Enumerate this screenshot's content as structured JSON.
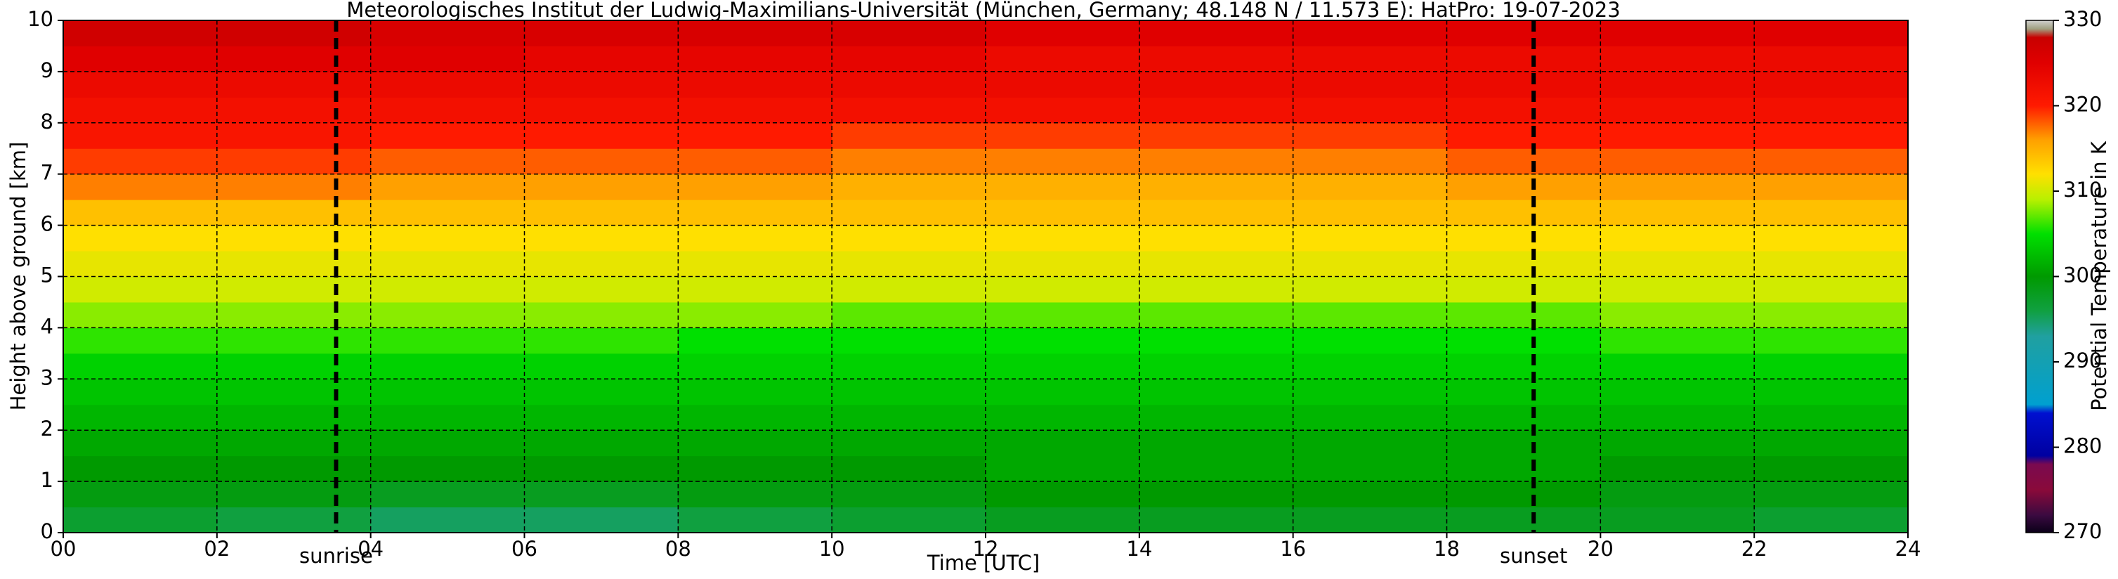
{
  "chart_data": {
    "type": "heatmap",
    "title": "Meteorologisches Institut der Ludwig-Maximilians-Universität (München, Germany; 48.148 N / 11.573 E):    HatPro: 19-07-2023",
    "xlabel": "Time [UTC]",
    "ylabel": "Height above ground [km]",
    "colorbar_label": "Potential Temperature in K",
    "x": [
      0,
      2,
      4,
      6,
      8,
      10,
      12,
      14,
      16,
      18,
      20,
      22,
      24
    ],
    "y": [
      0,
      0.5,
      1,
      1.5,
      2,
      2.5,
      3,
      3.5,
      4,
      4.5,
      5,
      5.5,
      6,
      6.5,
      7,
      7.5,
      8,
      8.5,
      9,
      9.5,
      10
    ],
    "z": [
      [
        297,
        296,
        295,
        295,
        296,
        297,
        298,
        298,
        298,
        298,
        298,
        297
      ],
      [
        299,
        299,
        298,
        298,
        299,
        299,
        300,
        300,
        300,
        300,
        299,
        299
      ],
      [
        300,
        300,
        300,
        300,
        300,
        300,
        301,
        301,
        301,
        301,
        300,
        300
      ],
      [
        301,
        301,
        301,
        301,
        301,
        301,
        301,
        301,
        301,
        301,
        301,
        301
      ],
      [
        302,
        302,
        302,
        302,
        302,
        302,
        302,
        302,
        302,
        302,
        302,
        302
      ],
      [
        303,
        303,
        303,
        303,
        303,
        303,
        303,
        303,
        303,
        303,
        303,
        303
      ],
      [
        304,
        304,
        304,
        304,
        304,
        304,
        304,
        304,
        304,
        304,
        304,
        304
      ],
      [
        306,
        306,
        306,
        306,
        305,
        305,
        305,
        305,
        305,
        305,
        306,
        306
      ],
      [
        308,
        308,
        308,
        308,
        308,
        307,
        307,
        307,
        307,
        307,
        308,
        308
      ],
      [
        310,
        310,
        310,
        310,
        310,
        310,
        310,
        310,
        310,
        310,
        310,
        310
      ],
      [
        311,
        311,
        311,
        311,
        311,
        311,
        311,
        311,
        311,
        311,
        311,
        311
      ],
      [
        312,
        312,
        312,
        312,
        312,
        312,
        312,
        312,
        312,
        312,
        312,
        312
      ],
      [
        314,
        314,
        314,
        314,
        314,
        314,
        314,
        314,
        314,
        314,
        314,
        314
      ],
      [
        317,
        317,
        316,
        316,
        316,
        315,
        315,
        315,
        315,
        316,
        316,
        316
      ],
      [
        319,
        319,
        318,
        318,
        318,
        317,
        317,
        317,
        317,
        318,
        318,
        318
      ],
      [
        321,
        321,
        320,
        320,
        320,
        319,
        319,
        319,
        319,
        320,
        320,
        320
      ],
      [
        322,
        322,
        322,
        322,
        322,
        322,
        322,
        322,
        322,
        322,
        322,
        322
      ],
      [
        323,
        323,
        323,
        323,
        323,
        323,
        323,
        323,
        323,
        323,
        323,
        323
      ],
      [
        325,
        325,
        325,
        324,
        324,
        324,
        323,
        323,
        323,
        323,
        323,
        323
      ],
      [
        327,
        327,
        326,
        326,
        326,
        326,
        325,
        325,
        325,
        325,
        325,
        325
      ]
    ],
    "xlim": [
      0,
      24
    ],
    "xticks": [
      {
        "value": 0,
        "label": "00"
      },
      {
        "value": 2,
        "label": "02"
      },
      {
        "value": 4,
        "label": "04"
      },
      {
        "value": 6,
        "label": "06"
      },
      {
        "value": 8,
        "label": "08"
      },
      {
        "value": 10,
        "label": "10"
      },
      {
        "value": 12,
        "label": "12"
      },
      {
        "value": 14,
        "label": "14"
      },
      {
        "value": 16,
        "label": "16"
      },
      {
        "value": 18,
        "label": "18"
      },
      {
        "value": 20,
        "label": "20"
      },
      {
        "value": 22,
        "label": "22"
      },
      {
        "value": 24,
        "label": "24"
      }
    ],
    "ylim": [
      0,
      10
    ],
    "yticks": [
      0,
      1,
      2,
      3,
      4,
      5,
      6,
      7,
      8,
      9,
      10
    ],
    "clim": [
      270,
      330
    ],
    "cticks": [
      270,
      280,
      290,
      300,
      310,
      320,
      330
    ],
    "colorscale": [
      [
        270,
        "#0a0018"
      ],
      [
        272,
        "#3a0a40"
      ],
      [
        275,
        "#8a0a3a"
      ],
      [
        278,
        "#7a0a50"
      ],
      [
        279,
        "#0000a0"
      ],
      [
        284,
        "#0010d0"
      ],
      [
        285,
        "#00a0d0"
      ],
      [
        293,
        "#20a0a0"
      ],
      [
        296,
        "#10a040"
      ],
      [
        300,
        "#009a00"
      ],
      [
        305,
        "#00e000"
      ],
      [
        309,
        "#b8f000"
      ],
      [
        312,
        "#ffe000"
      ],
      [
        316,
        "#ffa000"
      ],
      [
        320,
        "#ff1a00"
      ],
      [
        325,
        "#e00000"
      ],
      [
        328,
        "#c80000"
      ],
      [
        329,
        "#a0a080"
      ],
      [
        330,
        "#d0d0d0"
      ]
    ],
    "grid": true,
    "annotations": [
      {
        "text": "sunrise",
        "x": 3.55
      },
      {
        "text": "sunset",
        "x": 19.13
      }
    ]
  }
}
